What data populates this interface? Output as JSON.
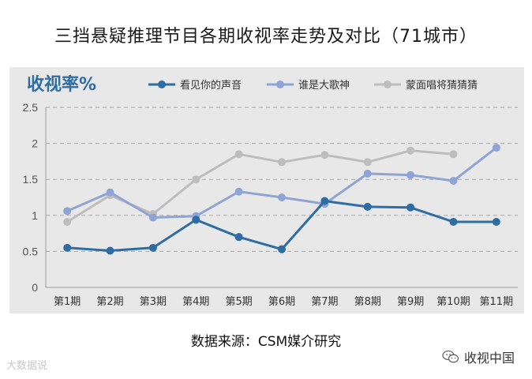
{
  "title": "三挡悬疑推理节目各期收视率走势及对比（71城市）",
  "source": "数据来源：CSM媒介研究",
  "watermark_left": "大数据说",
  "watermark_right": "收视中国",
  "chart_data": {
    "type": "line",
    "ylabel": "收视率%",
    "ylim": [
      0,
      2.5
    ],
    "yticks": [
      0,
      0.5,
      1,
      1.5,
      2,
      2.5
    ],
    "ytick_labels": [
      "0",
      "0.5",
      "1",
      "1.5",
      "2",
      "2.5"
    ],
    "grid": true,
    "legend_position": "top",
    "categories": [
      "第1期",
      "第2期",
      "第3期",
      "第4期",
      "第5期",
      "第6期",
      "第7期",
      "第8期",
      "第9期",
      "第10期",
      "第11期"
    ],
    "series": [
      {
        "name": "看见你的声音",
        "color": "#2e6da4",
        "values": [
          0.55,
          0.51,
          0.55,
          0.94,
          0.7,
          0.53,
          1.2,
          1.12,
          1.11,
          0.91,
          0.91
        ]
      },
      {
        "name": "谁是大歌神",
        "color": "#8fa3d6",
        "values": [
          1.06,
          1.32,
          0.97,
          0.99,
          1.33,
          1.25,
          1.16,
          1.58,
          1.56,
          1.48,
          1.94
        ]
      },
      {
        "name": "蒙面唱将猜猜猜",
        "color": "#bdbdbd",
        "values": [
          0.91,
          1.28,
          1.02,
          1.5,
          1.85,
          1.74,
          1.84,
          1.74,
          1.9,
          1.85,
          null
        ]
      }
    ]
  }
}
